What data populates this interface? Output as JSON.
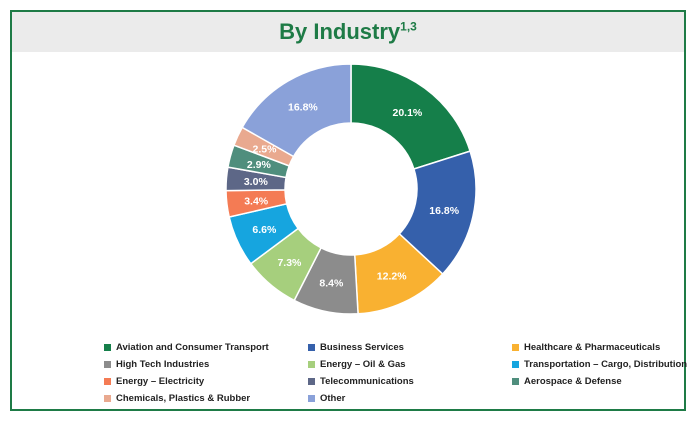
{
  "header": {
    "title": "By Industry",
    "superscript": "1,3"
  },
  "colors": {
    "border": "#1e7b46",
    "header_bg": "#ebebeb",
    "title": "#1e7b46"
  },
  "chart_data": {
    "type": "pie",
    "variant": "donut",
    "title": "By Industry",
    "legend_position": "bottom",
    "slices": [
      {
        "label": "Aviation and Consumer Transport",
        "value": 20.1,
        "display": "20.1%",
        "color": "#157f4a"
      },
      {
        "label": "Business Services",
        "value": 16.8,
        "display": "16.8%",
        "color": "#3560ab"
      },
      {
        "label": "Healthcare & Pharmaceuticals",
        "value": 12.2,
        "display": "12.2%",
        "color": "#f9b131"
      },
      {
        "label": "High Tech Industries",
        "value": 8.4,
        "display": "8.4%",
        "color": "#8c8c8c"
      },
      {
        "label": "Energy – Oil & Gas",
        "value": 7.3,
        "display": "7.3%",
        "color": "#a6cf7d"
      },
      {
        "label": "Transportation – Cargo, Distribution",
        "value": 6.6,
        "display": "6.6%",
        "color": "#16a5df"
      },
      {
        "label": "Energy – Electricity",
        "value": 3.4,
        "display": "3.4%",
        "color": "#f47b54"
      },
      {
        "label": "Telecommunications",
        "value": 3.0,
        "display": "3.0%",
        "color": "#5d6787"
      },
      {
        "label": "Aerospace & Defense",
        "value": 2.9,
        "display": "2.9%",
        "color": "#4f8e7d"
      },
      {
        "label": "Chemicals, Plastics & Rubber",
        "value": 2.5,
        "display": "2.5%",
        "color": "#e9a98f"
      },
      {
        "label": "Other",
        "value": 16.8,
        "display": "16.8%",
        "color": "#8aa1d9"
      }
    ]
  }
}
